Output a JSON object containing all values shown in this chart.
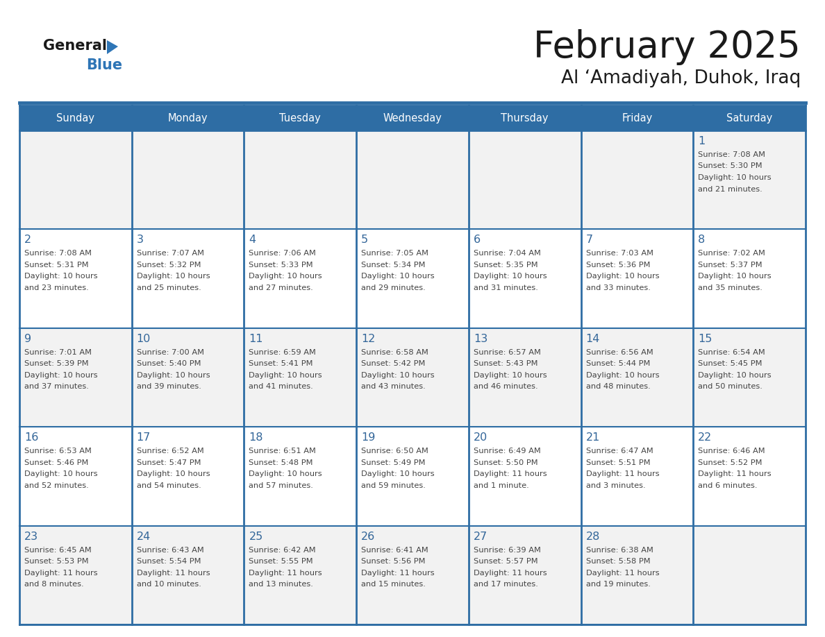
{
  "title": "February 2025",
  "subtitle": "Al ‘Amadiyah, Duhok, Iraq",
  "days_of_week": [
    "Sunday",
    "Monday",
    "Tuesday",
    "Wednesday",
    "Thursday",
    "Friday",
    "Saturday"
  ],
  "header_bg": "#2E6DA4",
  "header_text": "#FFFFFF",
  "row_bg_odd": "#F2F2F2",
  "row_bg_even": "#FFFFFF",
  "border_color": "#2E6DA4",
  "day_number_color": "#336699",
  "text_color": "#444444",
  "logo_general_color": "#1a1a1a",
  "logo_blue_color": "#2E75B6",
  "calendar_data": [
    [
      {
        "day": null,
        "info": null
      },
      {
        "day": null,
        "info": null
      },
      {
        "day": null,
        "info": null
      },
      {
        "day": null,
        "info": null
      },
      {
        "day": null,
        "info": null
      },
      {
        "day": null,
        "info": null
      },
      {
        "day": 1,
        "info": "Sunrise: 7:08 AM\nSunset: 5:30 PM\nDaylight: 10 hours\nand 21 minutes."
      }
    ],
    [
      {
        "day": 2,
        "info": "Sunrise: 7:08 AM\nSunset: 5:31 PM\nDaylight: 10 hours\nand 23 minutes."
      },
      {
        "day": 3,
        "info": "Sunrise: 7:07 AM\nSunset: 5:32 PM\nDaylight: 10 hours\nand 25 minutes."
      },
      {
        "day": 4,
        "info": "Sunrise: 7:06 AM\nSunset: 5:33 PM\nDaylight: 10 hours\nand 27 minutes."
      },
      {
        "day": 5,
        "info": "Sunrise: 7:05 AM\nSunset: 5:34 PM\nDaylight: 10 hours\nand 29 minutes."
      },
      {
        "day": 6,
        "info": "Sunrise: 7:04 AM\nSunset: 5:35 PM\nDaylight: 10 hours\nand 31 minutes."
      },
      {
        "day": 7,
        "info": "Sunrise: 7:03 AM\nSunset: 5:36 PM\nDaylight: 10 hours\nand 33 minutes."
      },
      {
        "day": 8,
        "info": "Sunrise: 7:02 AM\nSunset: 5:37 PM\nDaylight: 10 hours\nand 35 minutes."
      }
    ],
    [
      {
        "day": 9,
        "info": "Sunrise: 7:01 AM\nSunset: 5:39 PM\nDaylight: 10 hours\nand 37 minutes."
      },
      {
        "day": 10,
        "info": "Sunrise: 7:00 AM\nSunset: 5:40 PM\nDaylight: 10 hours\nand 39 minutes."
      },
      {
        "day": 11,
        "info": "Sunrise: 6:59 AM\nSunset: 5:41 PM\nDaylight: 10 hours\nand 41 minutes."
      },
      {
        "day": 12,
        "info": "Sunrise: 6:58 AM\nSunset: 5:42 PM\nDaylight: 10 hours\nand 43 minutes."
      },
      {
        "day": 13,
        "info": "Sunrise: 6:57 AM\nSunset: 5:43 PM\nDaylight: 10 hours\nand 46 minutes."
      },
      {
        "day": 14,
        "info": "Sunrise: 6:56 AM\nSunset: 5:44 PM\nDaylight: 10 hours\nand 48 minutes."
      },
      {
        "day": 15,
        "info": "Sunrise: 6:54 AM\nSunset: 5:45 PM\nDaylight: 10 hours\nand 50 minutes."
      }
    ],
    [
      {
        "day": 16,
        "info": "Sunrise: 6:53 AM\nSunset: 5:46 PM\nDaylight: 10 hours\nand 52 minutes."
      },
      {
        "day": 17,
        "info": "Sunrise: 6:52 AM\nSunset: 5:47 PM\nDaylight: 10 hours\nand 54 minutes."
      },
      {
        "day": 18,
        "info": "Sunrise: 6:51 AM\nSunset: 5:48 PM\nDaylight: 10 hours\nand 57 minutes."
      },
      {
        "day": 19,
        "info": "Sunrise: 6:50 AM\nSunset: 5:49 PM\nDaylight: 10 hours\nand 59 minutes."
      },
      {
        "day": 20,
        "info": "Sunrise: 6:49 AM\nSunset: 5:50 PM\nDaylight: 11 hours\nand 1 minute."
      },
      {
        "day": 21,
        "info": "Sunrise: 6:47 AM\nSunset: 5:51 PM\nDaylight: 11 hours\nand 3 minutes."
      },
      {
        "day": 22,
        "info": "Sunrise: 6:46 AM\nSunset: 5:52 PM\nDaylight: 11 hours\nand 6 minutes."
      }
    ],
    [
      {
        "day": 23,
        "info": "Sunrise: 6:45 AM\nSunset: 5:53 PM\nDaylight: 11 hours\nand 8 minutes."
      },
      {
        "day": 24,
        "info": "Sunrise: 6:43 AM\nSunset: 5:54 PM\nDaylight: 11 hours\nand 10 minutes."
      },
      {
        "day": 25,
        "info": "Sunrise: 6:42 AM\nSunset: 5:55 PM\nDaylight: 11 hours\nand 13 minutes."
      },
      {
        "day": 26,
        "info": "Sunrise: 6:41 AM\nSunset: 5:56 PM\nDaylight: 11 hours\nand 15 minutes."
      },
      {
        "day": 27,
        "info": "Sunrise: 6:39 AM\nSunset: 5:57 PM\nDaylight: 11 hours\nand 17 minutes."
      },
      {
        "day": 28,
        "info": "Sunrise: 6:38 AM\nSunset: 5:58 PM\nDaylight: 11 hours\nand 19 minutes."
      },
      {
        "day": null,
        "info": null
      }
    ]
  ]
}
